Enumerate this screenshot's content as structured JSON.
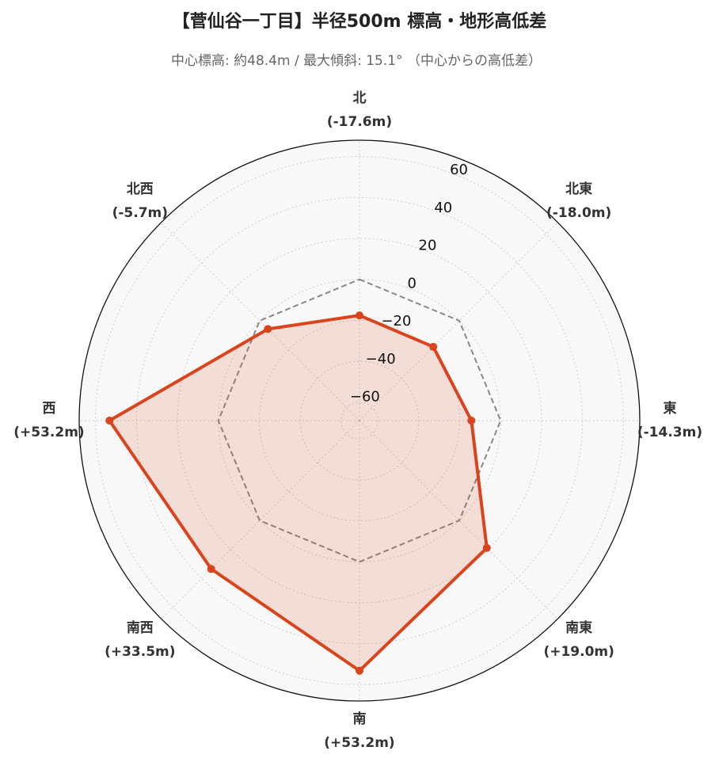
{
  "chart_data": {
    "type": "radar",
    "title": "【菅仙谷一丁目】半径500m 標高・地形高低差",
    "subtitle": "中心標高: 約48.4m / 最大傾斜: 15.1° （中心からの高低差）",
    "categories": [
      "北",
      "北東",
      "東",
      "南東",
      "南",
      "南西",
      "西",
      "北西"
    ],
    "values": [
      -17.6,
      -18.0,
      -14.3,
      19.0,
      53.2,
      33.5,
      53.2,
      -5.7
    ],
    "value_labels": [
      "(-17.6m)",
      "(-18.0m)",
      "(-14.3m)",
      "(+19.0m)",
      "(+53.2m)",
      "(+33.5m)",
      "(+53.2m)",
      "(-5.7m)"
    ],
    "color": "#d9441c",
    "reference_value": 0,
    "ylim": [
      -69,
      68
    ],
    "yticks": [
      {
        "value": -60,
        "label": "−60"
      },
      {
        "value": -40,
        "label": "−40"
      },
      {
        "value": -20,
        "label": "−20"
      },
      0,
      20,
      40,
      60
    ],
    "grid": true
  }
}
